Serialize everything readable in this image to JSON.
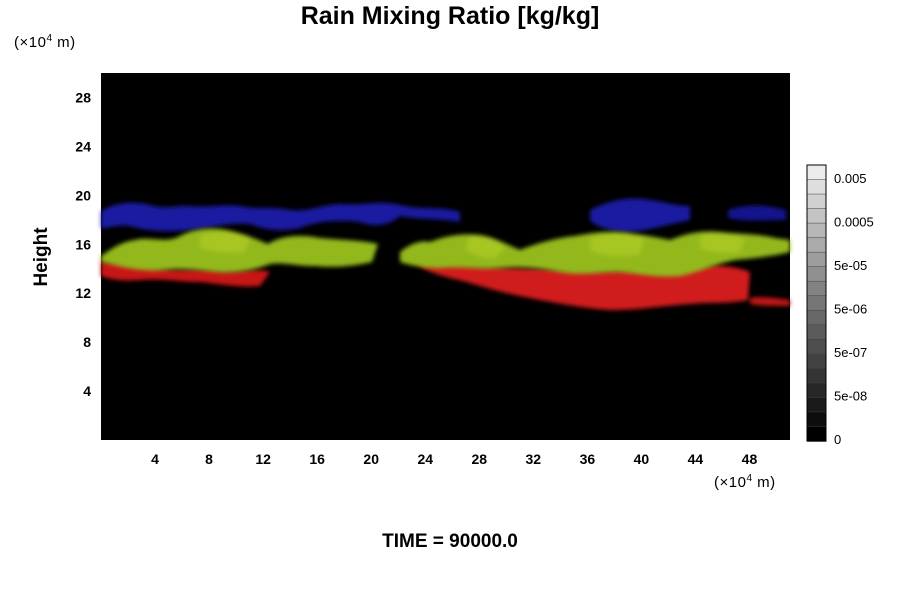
{
  "chart_data": {
    "type": "heatmap",
    "title": "Rain Mixing Ratio [kg/kg]",
    "ylabel": "Height",
    "x_unit_prefix": "(×10",
    "x_unit_exp": "4",
    "x_unit_suffix": " m)",
    "y_unit_prefix": "(×10",
    "y_unit_exp": "4",
    "y_unit_suffix": " m)",
    "xlim": [
      0,
      51
    ],
    "ylim": [
      0,
      30
    ],
    "x_ticks": [
      4,
      8,
      12,
      16,
      20,
      24,
      28,
      32,
      36,
      40,
      44,
      48
    ],
    "y_ticks": [
      4,
      8,
      12,
      16,
      20,
      24,
      28
    ],
    "colorbar_labels": [
      "0.005",
      "0.0005",
      "5e-05",
      "5e-06",
      "5e-07",
      "5e-08",
      "0"
    ],
    "background_color": "#000000",
    "layers": [
      {
        "color": "#2020c8",
        "height_range": [
          16.5,
          19.5
        ]
      },
      {
        "color": "#9ac21e",
        "height_range": [
          14,
          17
        ]
      },
      {
        "color": "#d01818",
        "height_range": [
          10.5,
          14.5
        ]
      }
    ],
    "footer": "TIME = 90000.0"
  }
}
